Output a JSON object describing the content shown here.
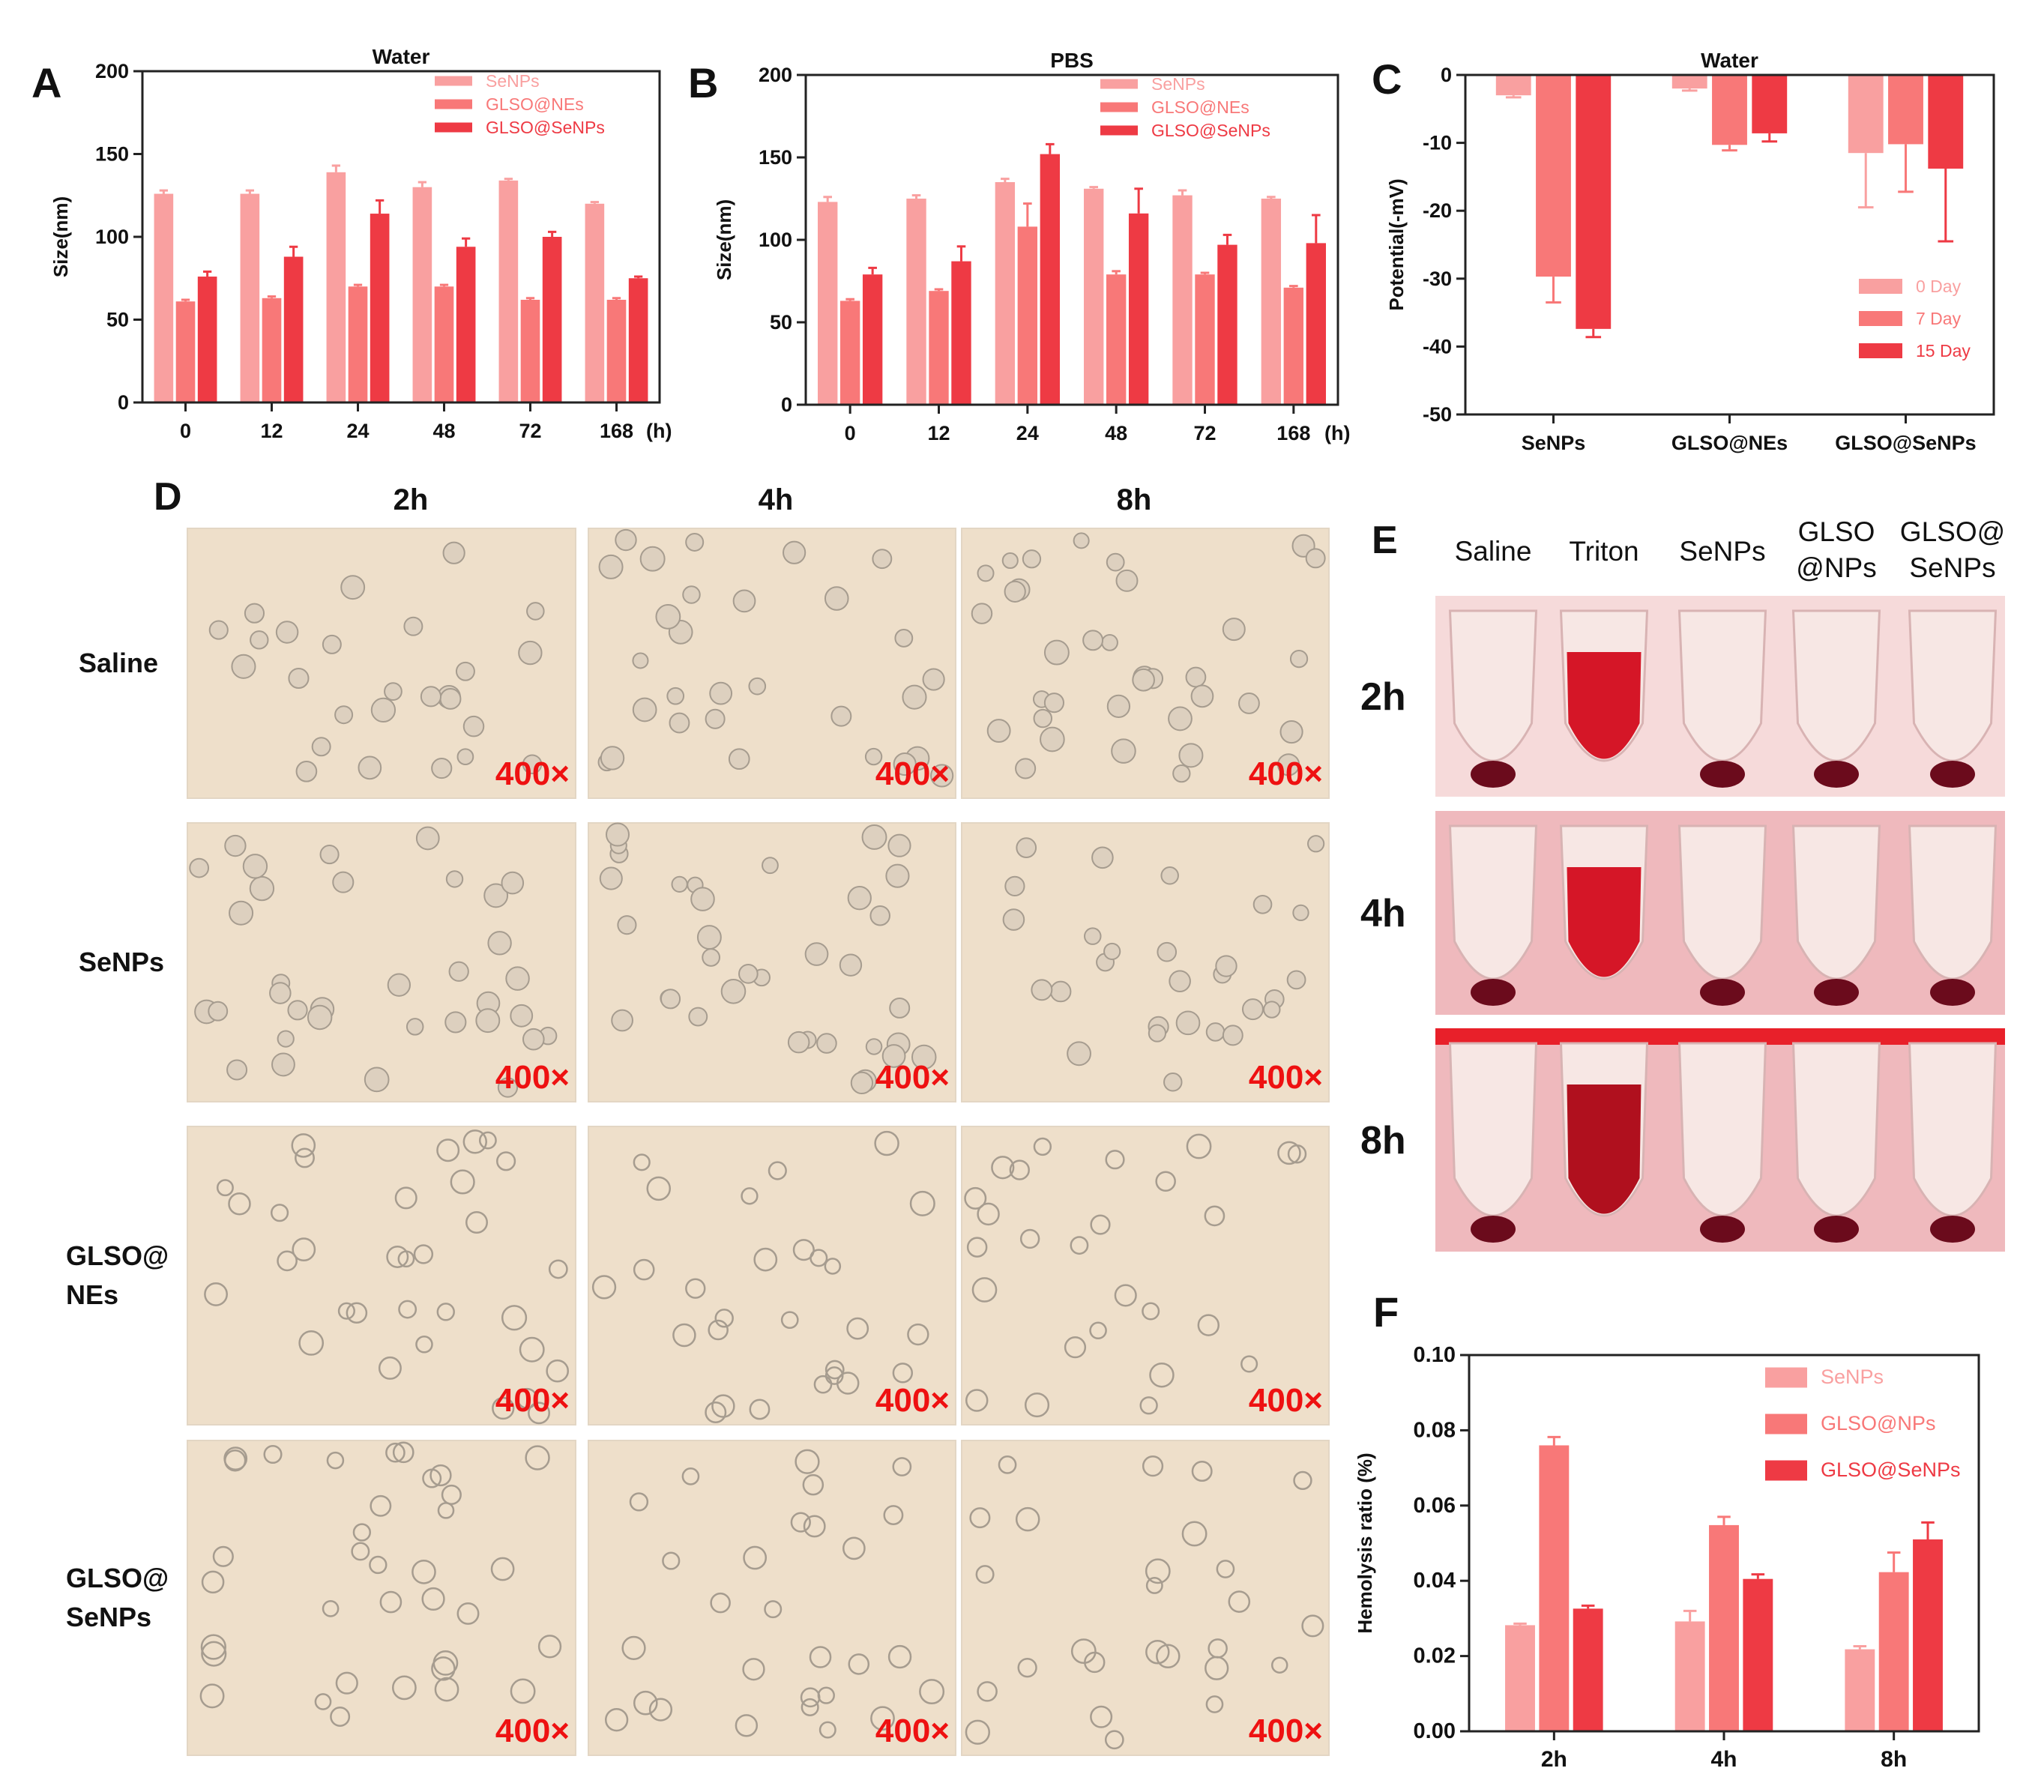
{
  "colors": {
    "c0": "#f9a0a0",
    "c1": "#f87878",
    "c2": "#ee3a44",
    "axis": "#222222",
    "micro_bg": "#eedfca",
    "cell_edge": "#a69c8f",
    "mag": "#ee1111"
  },
  "panels": {
    "D": {
      "letter": "D",
      "columns": [
        "2h",
        "4h",
        "8h"
      ],
      "rows": [
        [
          "Saline"
        ],
        [
          "SeNPs"
        ],
        [
          "GLSO@",
          "NEs"
        ],
        [
          "GLSO@",
          "SeNPs"
        ]
      ],
      "magnification": "400×"
    },
    "E": {
      "letter": "E",
      "columns": [
        [
          "Saline"
        ],
        [
          "Triton"
        ],
        [
          "SeNPs"
        ],
        [
          "GLSO",
          "@NPs"
        ],
        [
          "GLSO@",
          "SeNPs"
        ]
      ],
      "rows": [
        "2h",
        "4h",
        "8h"
      ]
    }
  },
  "chart_data": [
    {
      "letter": "A",
      "type": "bar",
      "title": "Water",
      "ylabel": "Size(nm)",
      "xlabel": "",
      "ylim": [
        0,
        200
      ],
      "yticks": [
        0,
        50,
        100,
        150,
        200
      ],
      "categories": [
        "0",
        "12",
        "24",
        "48",
        "72",
        "168"
      ],
      "unit": "(h)",
      "legend_position": "top-right",
      "series": [
        {
          "name": "SeNPs",
          "values": [
            126,
            126,
            139,
            130,
            134,
            120
          ],
          "errors": [
            2,
            2,
            4,
            3,
            1,
            1
          ]
        },
        {
          "name": "GLSO@NEs",
          "values": [
            61,
            63,
            70,
            70,
            62,
            62
          ],
          "errors": [
            1,
            1,
            1,
            1,
            1,
            1
          ]
        },
        {
          "name": "GLSO@SeNPs",
          "values": [
            76,
            88,
            114,
            94,
            100,
            75
          ],
          "errors": [
            3,
            6,
            8,
            5,
            3,
            1
          ]
        }
      ]
    },
    {
      "letter": "B",
      "type": "bar",
      "title": "PBS",
      "ylabel": "Size(nm)",
      "xlabel": "",
      "ylim": [
        0,
        200
      ],
      "yticks": [
        0,
        50,
        100,
        150,
        200
      ],
      "categories": [
        "0",
        "12",
        "24",
        "48",
        "72",
        "168"
      ],
      "unit": "(h)",
      "legend_position": "top-right",
      "series": [
        {
          "name": "SeNPs",
          "values": [
            123,
            125,
            135,
            131,
            127,
            125
          ],
          "errors": [
            3,
            2,
            2,
            1,
            3,
            1
          ]
        },
        {
          "name": "GLSO@NEs",
          "values": [
            63,
            69,
            108,
            79,
            79,
            71
          ],
          "errors": [
            1,
            1,
            14,
            2,
            1,
            1
          ]
        },
        {
          "name": "GLSO@SeNPs",
          "values": [
            79,
            87,
            152,
            116,
            97,
            98
          ],
          "errors": [
            4,
            9,
            6,
            15,
            6,
            17
          ]
        }
      ]
    },
    {
      "letter": "C",
      "type": "bar",
      "title": "Water",
      "ylabel": "Potential(-mV)",
      "xlabel": "",
      "ylim": [
        -50,
        0
      ],
      "yticks": [
        0,
        -10,
        -20,
        -30,
        -40,
        -50
      ],
      "categories": [
        "SeNPs",
        "GLSO@NEs",
        "GLSO@SeNPs"
      ],
      "unit": "",
      "legend_position": "bottom-right",
      "series": [
        {
          "name": "0 Day",
          "values": [
            -3,
            -2,
            -11.5
          ],
          "errors": [
            0.3,
            0.3,
            8
          ]
        },
        {
          "name": "7 Day",
          "values": [
            -29.7,
            -10.3,
            -10.2
          ],
          "errors": [
            3.8,
            0.8,
            7
          ]
        },
        {
          "name": "15 Day",
          "values": [
            -37.4,
            -8.6,
            -13.8
          ],
          "errors": [
            1.2,
            1.2,
            10.7
          ]
        }
      ]
    },
    {
      "letter": "F",
      "type": "bar",
      "title": "",
      "ylabel": "Hemolysis ratio   (%)",
      "xlabel": "",
      "ylim": [
        0,
        0.1
      ],
      "yticks": [
        0.0,
        0.02,
        0.04,
        0.06,
        0.08,
        0.1
      ],
      "categories": [
        "2h",
        "4h",
        "8h"
      ],
      "unit": "",
      "legend_position": "top-right",
      "series": [
        {
          "name": "SeNPs",
          "values": [
            0.0282,
            0.0292,
            0.0218
          ],
          "errors": [
            0.0004,
            0.0028,
            0.0008
          ]
        },
        {
          "name": "GLSO@NPs",
          "values": [
            0.076,
            0.0548,
            0.0423
          ],
          "errors": [
            0.0022,
            0.0022,
            0.0052
          ]
        },
        {
          "name": "GLSO@SeNPs",
          "values": [
            0.0326,
            0.0405,
            0.051
          ],
          "errors": [
            0.0008,
            0.0012,
            0.0045
          ]
        }
      ]
    }
  ]
}
